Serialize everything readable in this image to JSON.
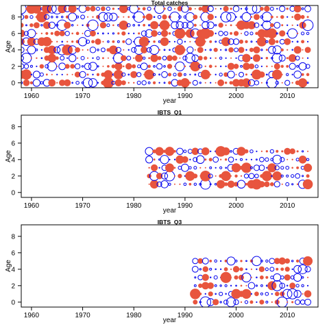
{
  "colors": {
    "positive": "#e8553e",
    "negative": "#0000ee",
    "frame": "#000000"
  },
  "chart_data": [
    {
      "type": "scatter",
      "title": "Total catches",
      "xlabel": "year",
      "ylabel": "Age",
      "xlim": [
        1958,
        2016
      ],
      "ylim": [
        -0.6,
        9.4
      ],
      "xticks": [
        1960,
        1970,
        1980,
        1990,
        2000,
        2010
      ],
      "yticks": [
        0,
        2,
        4,
        6,
        8
      ],
      "grid": false,
      "legend": "none",
      "x_range": [
        1958,
        2014
      ],
      "y_range": [
        0,
        9
      ]
    },
    {
      "type": "scatter",
      "title": "IBTS_Q1",
      "xlabel": "year",
      "ylabel": "Age",
      "xlim": [
        1958,
        2016
      ],
      "ylim": [
        -0.6,
        9.4
      ],
      "xticks": [
        1960,
        1970,
        1980,
        1990,
        2000,
        2010
      ],
      "yticks": [
        0,
        2,
        4,
        6,
        8
      ],
      "grid": false,
      "legend": "none",
      "x_range": [
        1983,
        2014
      ],
      "y_range": [
        1,
        5
      ]
    },
    {
      "type": "scatter",
      "title": "IBTS_Q3",
      "xlabel": "year",
      "ylabel": "Age",
      "xlim": [
        1958,
        2016
      ],
      "ylim": [
        -0.6,
        9.4
      ],
      "xticks": [
        1960,
        1970,
        1980,
        1990,
        2000,
        2010
      ],
      "yticks": [
        0,
        2,
        4,
        6,
        8
      ],
      "grid": false,
      "legend": "none",
      "x_range": [
        1992,
        2014
      ],
      "y_range": [
        0,
        5
      ]
    }
  ]
}
